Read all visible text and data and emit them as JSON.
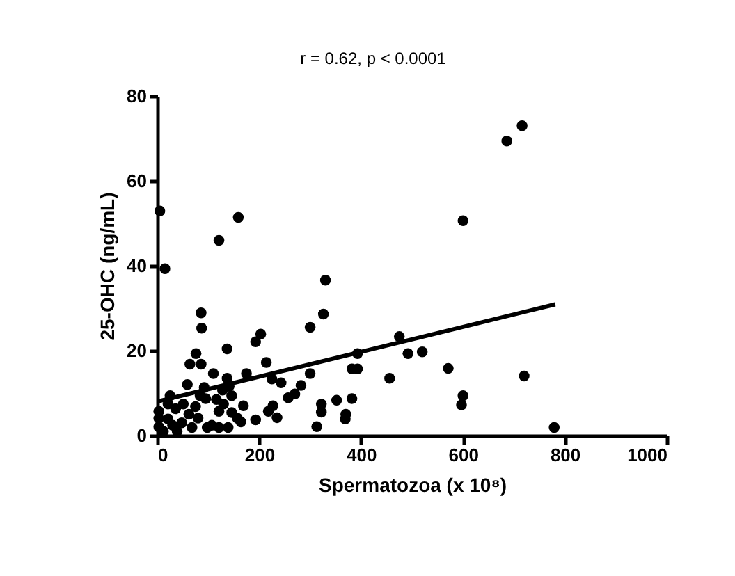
{
  "chart_data": {
    "type": "scatter",
    "xlabel": "Spermatozoa (x 10⁸)",
    "ylabel": "25-OHC (ng/mL)",
    "annotations": [
      "r = 0.62, p < 0.0001"
    ],
    "xlim": [
      0,
      1000
    ],
    "ylim": [
      0,
      80
    ],
    "xticks": [
      0,
      200,
      400,
      600,
      800,
      1000
    ],
    "yticks": [
      0,
      20,
      40,
      60,
      80
    ],
    "grid": false,
    "series": [
      {
        "color": "#000000",
        "marker": "circle",
        "x": [
          5,
          15,
          121,
          159,
          330,
          326,
          300,
          86,
          87,
          203,
          193,
          137,
          214,
          175,
          76,
          64,
          86,
          110,
          137,
          59,
          92,
          225,
          243,
          300,
          282,
          270,
          257,
          393,
          382,
          393,
          475,
          492,
          456,
          352,
          382,
          322,
          322,
          313,
          370,
          369,
          193,
          227,
          235,
          218,
          169,
          157,
          146,
          130,
          121,
          121,
          139,
          98,
          68,
          39,
          12,
          3,
          3,
          3,
          25,
          21,
          36,
          51,
          62,
          75,
          84,
          95,
          116,
          128,
          141,
          146,
          48,
          30,
          21,
          80,
          107,
          164,
          716,
          686,
          600,
          520,
          571,
          720,
          600,
          597,
          779
        ],
        "values": [
          52.9,
          39.3,
          46,
          51.4,
          36.6,
          28.6,
          25.5,
          28.9,
          25.3,
          23.9,
          22.1,
          20.4,
          17.2,
          14.6,
          19.3,
          16.8,
          16.8,
          14.6,
          13.5,
          12,
          11.3,
          13.3,
          12.4,
          14.6,
          11.8,
          9.8,
          8.9,
          19.3,
          15.7,
          15.7,
          23.3,
          19.3,
          13.5,
          8.3,
          8.7,
          7.4,
          5.5,
          2.1,
          5,
          3.9,
          3.7,
          7,
          4.2,
          5.7,
          7,
          4.1,
          5.4,
          7.4,
          5.7,
          1.9,
          1.9,
          1.9,
          1.9,
          1,
          1,
          2,
          4,
          5.7,
          9.4,
          7.4,
          6.3,
          7.4,
          5,
          6.8,
          9.4,
          8.7,
          8.5,
          10.7,
          11.6,
          9.4,
          3,
          2.4,
          3.9,
          4.1,
          2.4,
          3.2,
          73,
          69.4,
          50.6,
          19.7,
          15.8,
          14,
          9.4,
          7.2,
          1.9
        ]
      },
      {
        "type": "line",
        "color": "#000000",
        "x": [
          0,
          781
        ],
        "values": [
          8,
          30.9
        ],
        "line_style": "solid",
        "marker": "none"
      }
    ]
  }
}
